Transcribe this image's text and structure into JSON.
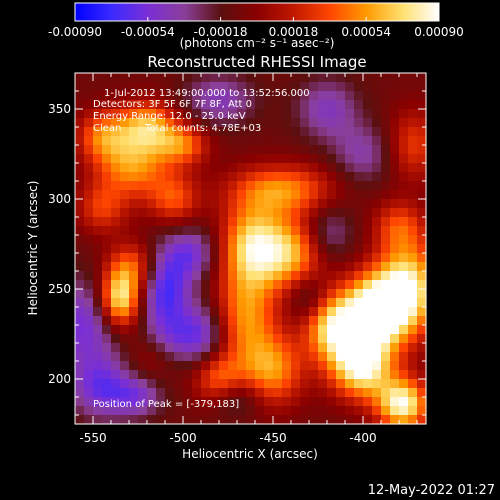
{
  "chart_data": {
    "type": "heatmap",
    "title": "Reconstructed RHESSI Image",
    "xlabel": "Heliocentric X (arcsec)",
    "ylabel": "Heliocentric Y (arcsec)",
    "xlim": [
      -560,
      -365
    ],
    "ylim": [
      175,
      370
    ],
    "x_ticks": [
      -550,
      -500,
      -450,
      -400
    ],
    "y_ticks": [
      200,
      250,
      300,
      350
    ],
    "colorbar": {
      "range": [
        -0.0009,
        0.0009
      ],
      "tick_values": [
        -0.0009,
        -0.00054,
        -0.00018,
        0.00018,
        0.00054,
        0.0009
      ],
      "tick_labels": [
        "-0.00090",
        "-0.00054",
        "-0.00018",
        "0.00018",
        "0.00054",
        "0.00090"
      ],
      "unit_label": "(photons cm⁻² s⁻¹ asec⁻²)",
      "colors": [
        "#0000ff",
        "#3a2aff",
        "#7a2fd6",
        "#8a3f9a",
        "#5a1010",
        "#8a0000",
        "#c01800",
        "#ff4500",
        "#ff9a00",
        "#ffe070",
        "#ffffff"
      ]
    },
    "info": {
      "time_range": "1-Jul-2012 13:49:00.000 to 13:52:56.000",
      "detectors": "Detectors: 3F 5F 6F 7F 8F, Att 0",
      "energy_range": "Energy Range: 12.0 - 25.0 keV",
      "clean": "Clean",
      "total_counts": "Total counts: 4.78E+03",
      "peak": "Position of Peak = [-379,183]"
    },
    "peak": {
      "x": -379,
      "y": 183
    },
    "sources": [
      {
        "x": -520,
        "y": 340,
        "amp": 0.0007,
        "sx": 12,
        "sy": 10
      },
      {
        "x": -528,
        "y": 318,
        "amp": 0.0006,
        "sx": 14,
        "sy": 12
      },
      {
        "x": -545,
        "y": 335,
        "amp": 0.0005,
        "sx": 10,
        "sy": 10
      },
      {
        "x": -500,
        "y": 330,
        "amp": 0.0005,
        "sx": 10,
        "sy": 8
      },
      {
        "x": -505,
        "y": 300,
        "amp": 0.00045,
        "sx": 10,
        "sy": 10
      },
      {
        "x": -545,
        "y": 295,
        "amp": 0.0004,
        "sx": 10,
        "sy": 10
      },
      {
        "x": -445,
        "y": 305,
        "amp": 0.0006,
        "sx": 20,
        "sy": 10
      },
      {
        "x": -462,
        "y": 275,
        "amp": 0.0007,
        "sx": 12,
        "sy": 16
      },
      {
        "x": -440,
        "y": 270,
        "amp": 0.0007,
        "sx": 14,
        "sy": 14
      },
      {
        "x": -465,
        "y": 235,
        "amp": 0.0006,
        "sx": 12,
        "sy": 20
      },
      {
        "x": -450,
        "y": 205,
        "amp": 0.0006,
        "sx": 12,
        "sy": 14
      },
      {
        "x": -480,
        "y": 200,
        "amp": 0.0005,
        "sx": 10,
        "sy": 10
      },
      {
        "x": -535,
        "y": 244,
        "amp": 0.0009,
        "sx": 8,
        "sy": 11
      },
      {
        "x": -528,
        "y": 262,
        "amp": 0.0005,
        "sx": 10,
        "sy": 10
      },
      {
        "x": -515,
        "y": 215,
        "amp": 0.00035,
        "sx": 10,
        "sy": 10
      },
      {
        "x": -375,
        "y": 250,
        "amp": 0.0009,
        "sx": 12,
        "sy": 18
      },
      {
        "x": -392,
        "y": 240,
        "amp": 0.0008,
        "sx": 12,
        "sy": 14
      },
      {
        "x": -405,
        "y": 225,
        "amp": 0.0008,
        "sx": 14,
        "sy": 16
      },
      {
        "x": -378,
        "y": 186,
        "amp": 0.00095,
        "sx": 10,
        "sy": 10
      },
      {
        "x": -400,
        "y": 205,
        "amp": 0.0007,
        "sx": 12,
        "sy": 12
      },
      {
        "x": -420,
        "y": 230,
        "amp": 0.00045,
        "sx": 10,
        "sy": 12
      },
      {
        "x": -372,
        "y": 330,
        "amp": 0.0004,
        "sx": 10,
        "sy": 14
      },
      {
        "x": -380,
        "y": 285,
        "amp": 0.0004,
        "sx": 10,
        "sy": 10
      },
      {
        "x": -555,
        "y": 230,
        "amp": -0.00045,
        "sx": 14,
        "sy": 18
      },
      {
        "x": -545,
        "y": 195,
        "amp": -0.00045,
        "sx": 12,
        "sy": 12
      },
      {
        "x": -510,
        "y": 250,
        "amp": -0.0006,
        "sx": 10,
        "sy": 16
      },
      {
        "x": -495,
        "y": 270,
        "amp": -0.0004,
        "sx": 10,
        "sy": 10
      },
      {
        "x": -510,
        "y": 220,
        "amp": -0.0004,
        "sx": 10,
        "sy": 10
      },
      {
        "x": -490,
        "y": 225,
        "amp": -0.00045,
        "sx": 10,
        "sy": 12
      },
      {
        "x": -480,
        "y": 355,
        "amp": -0.00035,
        "sx": 14,
        "sy": 10
      },
      {
        "x": -420,
        "y": 350,
        "amp": -0.00035,
        "sx": 12,
        "sy": 12
      },
      {
        "x": -400,
        "y": 325,
        "amp": -0.0003,
        "sx": 12,
        "sy": 12
      },
      {
        "x": -420,
        "y": 280,
        "amp": -0.00035,
        "sx": 10,
        "sy": 12
      },
      {
        "x": -430,
        "y": 245,
        "amp": -0.0003,
        "sx": 8,
        "sy": 10
      },
      {
        "x": -470,
        "y": 190,
        "amp": -0.0003,
        "sx": 10,
        "sy": 8
      },
      {
        "x": -525,
        "y": 190,
        "amp": -0.00035,
        "sx": 10,
        "sy": 8
      }
    ]
  },
  "footer": {
    "timestamp": "12-May-2022 01:27"
  }
}
